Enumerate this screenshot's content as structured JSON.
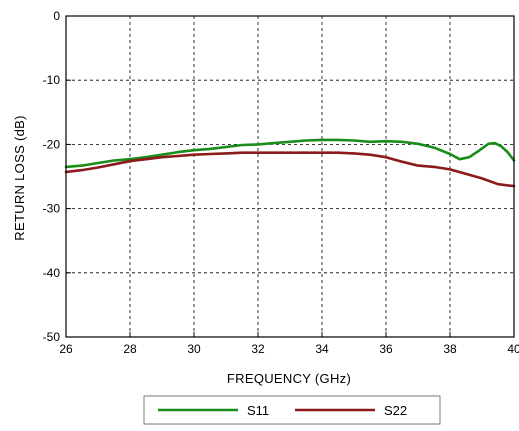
{
  "chart_data": {
    "type": "line",
    "title": "",
    "xlabel": "FREQUENCY (GHz)",
    "ylabel": "RETURN LOSS (dB)",
    "xlim": [
      26,
      40
    ],
    "ylim": [
      -50,
      0
    ],
    "x_ticks": [
      "26",
      "28",
      "30",
      "32",
      "34",
      "36",
      "38",
      "40"
    ],
    "y_ticks": [
      "0",
      "-10",
      "-20",
      "-30",
      "-40",
      "-50"
    ],
    "grid": true,
    "legend_position": "bottom",
    "series": [
      {
        "name": "S11",
        "color": "#1a8c1a",
        "x": [
          26,
          26.5,
          27,
          27.5,
          28,
          28.5,
          29,
          29.5,
          30,
          30.5,
          31,
          31.5,
          32,
          32.5,
          33,
          33.5,
          34,
          34.5,
          35,
          35.5,
          36,
          36.5,
          37,
          37.5,
          38,
          38.3,
          38.6,
          38.9,
          39.2,
          39.4,
          39.6,
          39.8,
          40
        ],
        "y": [
          -23.5,
          -23.3,
          -22.9,
          -22.5,
          -22.3,
          -22.0,
          -21.6,
          -21.2,
          -20.9,
          -20.7,
          -20.4,
          -20.1,
          -20.0,
          -19.8,
          -19.6,
          -19.4,
          -19.3,
          -19.3,
          -19.4,
          -19.6,
          -19.5,
          -19.6,
          -19.9,
          -20.5,
          -21.5,
          -22.3,
          -22.0,
          -21.0,
          -19.9,
          -19.8,
          -20.3,
          -21.2,
          -22.5
        ]
      },
      {
        "name": "S22",
        "color": "#8b1a1a",
        "x": [
          26,
          26.5,
          27,
          27.5,
          28,
          28.5,
          29,
          29.5,
          30,
          30.5,
          31,
          31.5,
          32,
          32.5,
          33,
          33.5,
          34,
          34.5,
          35,
          35.5,
          36,
          36.5,
          37,
          37.5,
          38,
          38.5,
          39,
          39.5,
          40
        ],
        "y": [
          -24.3,
          -24.0,
          -23.6,
          -23.1,
          -22.6,
          -22.3,
          -22.0,
          -21.8,
          -21.6,
          -21.5,
          -21.4,
          -21.3,
          -21.3,
          -21.3,
          -21.3,
          -21.3,
          -21.3,
          -21.3,
          -21.4,
          -21.6,
          -22.0,
          -22.7,
          -23.3,
          -23.5,
          -23.9,
          -24.6,
          -25.3,
          -26.2,
          -26.5
        ]
      }
    ]
  }
}
